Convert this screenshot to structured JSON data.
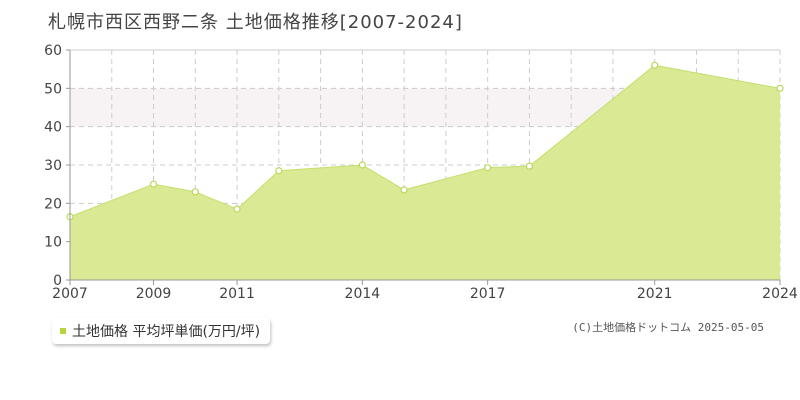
{
  "title": "札幌市西区西野二条 土地価格推移[2007-2024]",
  "legend": {
    "label": "土地価格 平均坪単価(万円/坪)"
  },
  "copyright": "(C)土地価格ドットコム 2025-05-05",
  "colors": {
    "area_fill": "#dae993",
    "line": "#c3df6c",
    "point_stroke": "#b8d95a",
    "legend_swatch": "#b5d43e",
    "band": "#f7f3f5",
    "grid": "#cccccc",
    "axis": "#999999"
  },
  "chart_data": {
    "type": "area",
    "x": [
      2007,
      2009,
      2010,
      2011,
      2012,
      2014,
      2015,
      2017,
      2018,
      2021,
      2024
    ],
    "series": [
      {
        "name": "土地価格 平均坪単価(万円/坪)",
        "values": [
          16.5,
          25,
          23,
          18.5,
          28.5,
          30,
          23.5,
          29.3,
          29.7,
          56,
          50
        ]
      }
    ],
    "xticks": [
      2007,
      2009,
      2011,
      2014,
      2017,
      2021,
      2024
    ],
    "xlim": [
      2007,
      2024
    ],
    "ylim": [
      0,
      60
    ],
    "yticks": [
      0,
      10,
      20,
      30,
      40,
      50,
      60
    ],
    "grid": true
  }
}
